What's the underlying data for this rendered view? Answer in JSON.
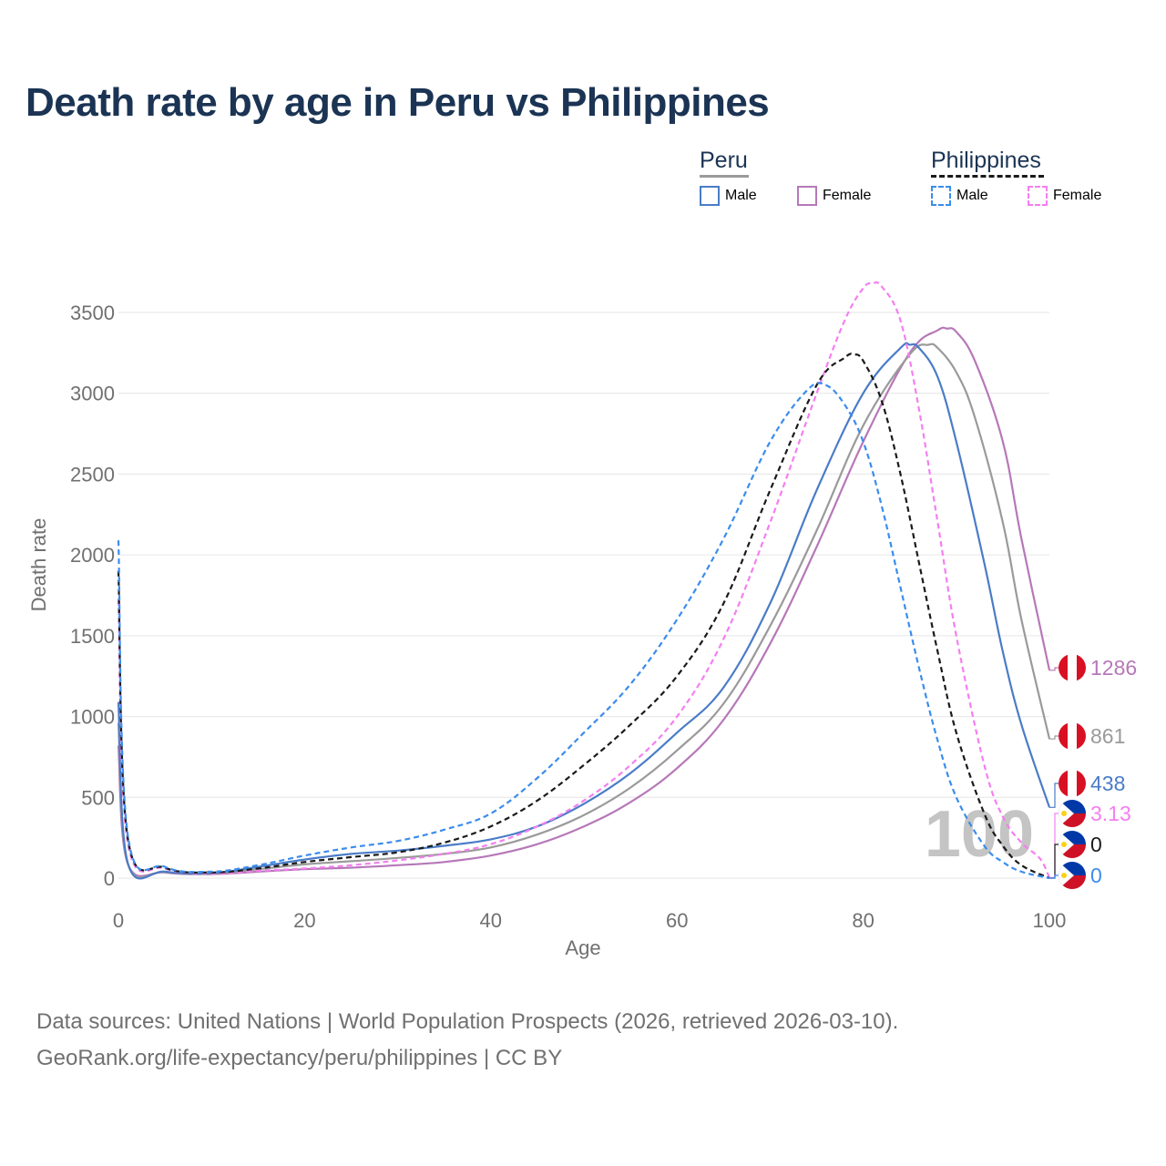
{
  "title": "Death rate by age in Peru vs Philippines",
  "legend": {
    "groups": [
      {
        "name": "Peru",
        "items": [
          {
            "label": "Male",
            "color": "#4a7cc7",
            "dashed": false
          },
          {
            "label": "Female",
            "color": "#b678b8",
            "dashed": false
          }
        ]
      },
      {
        "name": "Philippines",
        "items": [
          {
            "label": "Male",
            "color": "#3b8ced",
            "dashed": true
          },
          {
            "label": "Female",
            "color": "#f47ff0",
            "dashed": true
          }
        ]
      }
    ]
  },
  "watermark_year": "100",
  "footer": {
    "line1": "Data sources: United Nations | World Population Prospects (2026, retrieved 2026-03-10).",
    "line2": "GeoRank.org/life-expectancy/peru/philippines | CC BY"
  },
  "chart_data": {
    "type": "line",
    "title": "Death rate by age in Peru vs Philippines",
    "xlabel": "Age",
    "ylabel": "Death rate",
    "xlim": [
      0,
      100
    ],
    "ylim": [
      0,
      3700
    ],
    "xticks": [
      0,
      20,
      40,
      60,
      80,
      100
    ],
    "yticks": [
      0,
      500,
      1000,
      1500,
      2000,
      2500,
      3000,
      3500
    ],
    "grid": true,
    "series": [
      {
        "name": "Peru Female",
        "country": "Peru",
        "flag": "peru",
        "color": "#b678b8",
        "dashed": false,
        "end_label": "1286",
        "x": [
          0,
          1,
          5,
          10,
          15,
          20,
          25,
          30,
          35,
          40,
          45,
          50,
          55,
          60,
          65,
          70,
          75,
          80,
          85,
          88,
          89,
          90,
          92,
          95,
          97,
          100
        ],
        "y": [
          820,
          90,
          35,
          25,
          40,
          55,
          65,
          80,
          100,
          140,
          210,
          320,
          470,
          680,
          980,
          1450,
          2050,
          2700,
          3250,
          3390,
          3400,
          3380,
          3200,
          2700,
          2100,
          1286
        ]
      },
      {
        "name": "Peru Total",
        "country": "Peru",
        "flag": "peru",
        "color": "#9a9a9a",
        "dashed": false,
        "end_label": "861",
        "x": [
          0,
          1,
          5,
          10,
          15,
          20,
          25,
          30,
          35,
          40,
          45,
          50,
          55,
          60,
          65,
          70,
          75,
          80,
          85,
          87,
          88,
          90,
          92,
          95,
          97,
          100
        ],
        "y": [
          960,
          92,
          38,
          28,
          55,
          85,
          105,
          125,
          150,
          190,
          270,
          390,
          560,
          790,
          1080,
          1560,
          2150,
          2800,
          3240,
          3300,
          3280,
          3130,
          2850,
          2200,
          1600,
          861
        ]
      },
      {
        "name": "Peru Male",
        "country": "Peru",
        "flag": "peru",
        "color": "#4a7cc7",
        "dashed": false,
        "end_label": "438",
        "x": [
          0,
          1,
          5,
          10,
          15,
          20,
          25,
          30,
          35,
          40,
          45,
          50,
          55,
          60,
          65,
          70,
          75,
          80,
          84,
          85,
          86,
          88,
          90,
          93,
          95,
          97,
          100
        ],
        "y": [
          1090,
          95,
          40,
          30,
          70,
          115,
          150,
          170,
          200,
          240,
          320,
          460,
          650,
          900,
          1180,
          1700,
          2400,
          3000,
          3280,
          3300,
          3280,
          3100,
          2700,
          1950,
          1400,
          950,
          438
        ]
      },
      {
        "name": "Philippines Female",
        "country": "Philippines",
        "flag": "philippines",
        "color": "#f47ff0",
        "dashed": true,
        "end_label": "3.13",
        "x": [
          0,
          1,
          5,
          10,
          15,
          20,
          25,
          30,
          35,
          40,
          45,
          50,
          55,
          60,
          65,
          70,
          75,
          78,
          80,
          81,
          82,
          84,
          86,
          88,
          90,
          93,
          95,
          97,
          99,
          100
        ],
        "y": [
          1720,
          220,
          60,
          30,
          45,
          60,
          80,
          110,
          150,
          210,
          320,
          480,
          700,
          1000,
          1480,
          2200,
          3000,
          3450,
          3650,
          3680,
          3660,
          3450,
          2900,
          2200,
          1500,
          700,
          380,
          220,
          120,
          3.13
        ]
      },
      {
        "name": "Philippines Total",
        "country": "Philippines",
        "flag": "philippines",
        "color": "#1a1a1a",
        "dashed": true,
        "end_label": "0",
        "x": [
          0,
          1,
          5,
          10,
          15,
          20,
          25,
          30,
          35,
          40,
          45,
          50,
          55,
          60,
          65,
          70,
          75,
          78,
          79,
          80,
          82,
          84,
          86,
          88,
          90,
          93,
          95,
          97,
          100
        ],
        "y": [
          1900,
          250,
          65,
          35,
          60,
          100,
          130,
          160,
          220,
          320,
          480,
          700,
          950,
          1250,
          1700,
          2400,
          3050,
          3220,
          3240,
          3200,
          2950,
          2500,
          1950,
          1400,
          900,
          400,
          200,
          80,
          0
        ]
      },
      {
        "name": "Philippines Male",
        "country": "Philippines",
        "flag": "philippines",
        "color": "#3b8ced",
        "dashed": true,
        "end_label": "0",
        "x": [
          0,
          1,
          5,
          10,
          15,
          20,
          25,
          30,
          35,
          40,
          45,
          50,
          55,
          60,
          65,
          70,
          74,
          76,
          78,
          80,
          82,
          84,
          86,
          88,
          90,
          93,
          95,
          97,
          100
        ],
        "y": [
          2090,
          270,
          70,
          40,
          80,
          140,
          190,
          230,
          300,
          400,
          620,
          900,
          1200,
          1600,
          2100,
          2700,
          3020,
          3050,
          2930,
          2700,
          2300,
          1800,
          1300,
          850,
          500,
          200,
          100,
          40,
          0
        ]
      }
    ]
  }
}
